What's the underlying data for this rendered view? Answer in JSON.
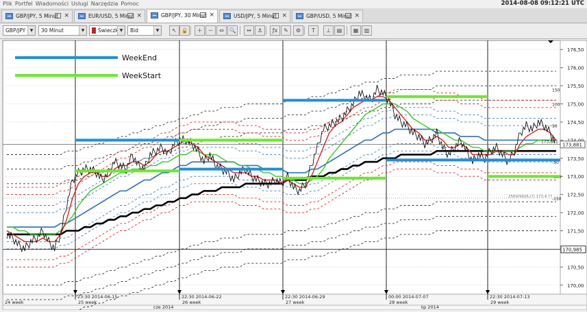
{
  "menu": [
    "Plik",
    "Portfel",
    "Wiadomości",
    "Usługi",
    "Narzędzia",
    "Pomoc"
  ],
  "clock": "2014-08-08 09:12:21 UTC",
  "tabs": [
    {
      "label": "GBP/JPY, 5 Minut",
      "active": false
    },
    {
      "label": "EUR/USD, 5 Minut",
      "active": false
    },
    {
      "label": "GBP/JPY, 30 Minut",
      "active": true
    },
    {
      "label": "USD/JPY, 5 Minut",
      "active": false
    },
    {
      "label": "GBP/USD, 5 Minut",
      "active": false
    }
  ],
  "toolbar": {
    "instrument": "GBP/JPY",
    "period": "30 Minut",
    "chart_type": "Świeczka",
    "side": "Bid"
  },
  "toolbar_buttons": [
    "cursor-tool",
    "lock-tool",
    "zoom-in-tool",
    "zoom-out-tool",
    "zoom-fit-tool",
    "magnifier-tool",
    "shift-tool",
    "anchor-tool",
    "fx-indicator-tool",
    "draw-tool",
    "settings-tool",
    "text-tool",
    "ruler-tool",
    "template-tool",
    "grid-tool",
    "table-tool"
  ],
  "chart_data": {
    "type": "line",
    "instrument": "GBP/JPY",
    "ylim": [
      169.75,
      176.75
    ],
    "y_ticks": [
      "176,50",
      "176,00",
      "175,50",
      "175,00",
      "174,50",
      "174,00",
      "173,50",
      "173,00",
      "172,50",
      "172,00",
      "171,50",
      "171,00",
      "170,50",
      "170,00"
    ],
    "y_tick_values": [
      176.5,
      176.0,
      175.5,
      175.0,
      174.5,
      174.0,
      173.5,
      173.0,
      172.5,
      172.0,
      171.5,
      171.0,
      170.5,
      170.0
    ],
    "current_price": "173,881",
    "current_price_value": 173.88,
    "crosshair_price": "170,985",
    "crosshair_price_value": 170.985,
    "info_label": "2569/9926,(?) 173.4 ??",
    "period_levels": [
      {
        "label": "150",
        "value": 175.4
      },
      {
        "label": "100",
        "value": 175.0
      },
      {
        "label": "50",
        "value": 174.4
      },
      {
        "label": "-50",
        "value": 173.4
      },
      {
        "label": "-100",
        "value": 173.0
      },
      {
        "label": "-150",
        "value": 172.4
      }
    ],
    "week_separators": [
      {
        "time": "23:30 2014-06-15",
        "week": "25 week"
      },
      {
        "time": "22:30 2014-06-22",
        "week": "26 week"
      },
      {
        "time": "22:30 2014-06-29",
        "week": "27 week"
      },
      {
        "time": "00:00 2014-07-07",
        "week": "28 week"
      },
      {
        "time": "22:30 2014-07-13",
        "week": "29 week"
      }
    ],
    "first_week": "24 week",
    "months": [
      {
        "label": "cze 2014",
        "position": 0.27
      },
      {
        "label": "lip 2014",
        "position": 0.75
      }
    ],
    "legend": [
      {
        "name": "WeekEnd",
        "color": "#1e90e0"
      },
      {
        "name": "WeekStart",
        "color": "#66ee22"
      }
    ],
    "week_end_levels": [
      174.0,
      175.1,
      173.2
    ],
    "week_start_levels": [
      173.15,
      174.0,
      172.95,
      175.2,
      173.0
    ],
    "price": [
      171.4,
      171.3,
      171.1,
      171.0,
      171.2,
      171.3,
      171.5,
      171.2,
      171.0,
      171.4,
      172.2,
      172.9,
      173.1,
      173.2,
      173.2,
      173.1,
      172.9,
      173.1,
      173.4,
      173.3,
      173.2,
      173.6,
      173.3,
      173.2,
      173.6,
      173.7,
      173.8,
      173.6,
      173.9,
      174.0,
      174.0,
      173.9,
      173.7,
      173.4,
      173.6,
      173.3,
      173.2,
      173.1,
      172.9,
      173.1,
      173.2,
      173.0,
      172.9,
      172.8,
      172.8,
      172.9,
      172.8,
      173.0,
      172.7,
      172.6,
      172.8,
      173.3,
      173.8,
      174.3,
      174.4,
      174.5,
      174.6,
      174.8,
      175.0,
      175.3,
      175.2,
      175.1,
      175.4,
      175.3,
      175.1,
      174.7,
      174.5,
      174.4,
      174.2,
      174.1,
      173.9,
      174.0,
      174.2,
      173.8,
      173.6,
      173.8,
      174.0,
      173.7,
      173.4,
      173.6,
      173.5,
      173.7,
      173.8,
      173.6,
      173.4,
      173.7,
      174.2,
      174.4,
      174.3,
      174.5,
      174.4,
      174.2,
      173.9
    ],
    "ema_red": [
      171.5,
      171.4,
      171.3,
      171.2,
      171.2,
      171.2,
      171.3,
      171.2,
      171.2,
      171.4,
      171.8,
      172.4,
      172.8,
      173.0,
      173.1,
      173.1,
      173.0,
      173.0,
      173.2,
      173.3,
      173.3,
      173.4,
      173.4,
      173.3,
      173.4,
      173.6,
      173.7,
      173.7,
      173.8,
      173.9,
      174.0,
      173.9,
      173.8,
      173.6,
      173.5,
      173.4,
      173.3,
      173.2,
      173.1,
      173.1,
      173.1,
      173.0,
      173.0,
      172.9,
      172.9,
      172.9,
      172.8,
      172.9,
      172.8,
      172.7,
      172.7,
      173.0,
      173.4,
      173.8,
      174.2,
      174.4,
      174.5,
      174.7,
      174.9,
      175.0,
      175.1,
      175.1,
      175.2,
      175.2,
      175.1,
      174.9,
      174.7,
      174.5,
      174.3,
      174.2,
      174.0,
      174.0,
      174.1,
      174.0,
      173.8,
      173.8,
      173.9,
      173.8,
      173.6,
      173.6,
      173.6,
      173.6,
      173.7,
      173.7,
      173.6,
      173.6,
      173.9,
      174.1,
      174.2,
      174.3,
      174.3,
      174.2,
      174.0
    ],
    "sma_green": [
      171.6,
      171.6,
      171.5,
      171.5,
      171.4,
      171.4,
      171.4,
      171.4,
      171.4,
      171.5,
      171.7,
      171.9,
      172.2,
      172.4,
      172.6,
      172.7,
      172.8,
      172.9,
      173.0,
      173.1,
      173.1,
      173.2,
      173.2,
      173.2,
      173.3,
      173.3,
      173.4,
      173.4,
      173.5,
      173.6,
      173.6,
      173.7,
      173.7,
      173.6,
      173.6,
      173.6,
      173.5,
      173.4,
      173.4,
      173.3,
      173.3,
      173.2,
      173.2,
      173.1,
      173.1,
      173.0,
      173.0,
      172.9,
      172.9,
      172.8,
      172.8,
      172.9,
      173.0,
      173.2,
      173.5,
      173.7,
      173.9,
      174.1,
      174.3,
      174.5,
      174.7,
      174.8,
      174.9,
      175.0,
      175.0,
      175.0,
      174.9,
      174.8,
      174.6,
      174.5,
      174.4,
      174.3,
      174.3,
      174.2,
      174.1,
      174.0,
      174.0,
      173.9,
      173.8,
      173.8,
      173.7,
      173.7,
      173.7,
      173.7,
      173.7,
      173.7,
      173.8,
      173.9,
      173.9,
      174.0,
      174.0,
      174.0,
      174.0
    ],
    "sma_blue": [
      171.6,
      171.6,
      171.6,
      171.6,
      171.6,
      171.6,
      171.6,
      171.6,
      171.6,
      171.7,
      171.7,
      171.8,
      171.9,
      172.0,
      172.1,
      172.2,
      172.3,
      172.4,
      172.5,
      172.6,
      172.6,
      172.7,
      172.8,
      172.9,
      172.9,
      173.0,
      173.1,
      173.1,
      173.2,
      173.3,
      173.3,
      173.4,
      173.4,
      173.4,
      173.4,
      173.4,
      173.4,
      173.4,
      173.4,
      173.3,
      173.3,
      173.3,
      173.3,
      173.2,
      173.2,
      173.2,
      173.2,
      173.1,
      173.1,
      173.1,
      173.1,
      173.2,
      173.2,
      173.3,
      173.4,
      173.5,
      173.6,
      173.7,
      173.8,
      173.9,
      174.0,
      174.0,
      174.1,
      174.2,
      174.2,
      174.3,
      174.3,
      174.3,
      174.3,
      174.3,
      174.3,
      174.3,
      174.2,
      174.2,
      174.2,
      174.2,
      174.1,
      174.1,
      174.1,
      174.1,
      174.0,
      174.0,
      174.0,
      174.0,
      174.0,
      174.0,
      174.0,
      174.0,
      174.0,
      174.0,
      174.0,
      174.0,
      174.0
    ],
    "sma_black": [
      171.4,
      171.4,
      171.4,
      171.4,
      171.4,
      171.4,
      171.4,
      171.4,
      171.4,
      171.4,
      171.5,
      171.5,
      171.5,
      171.6,
      171.6,
      171.7,
      171.7,
      171.8,
      171.8,
      171.9,
      171.9,
      172.0,
      172.0,
      172.1,
      172.1,
      172.2,
      172.2,
      172.3,
      172.3,
      172.4,
      172.4,
      172.5,
      172.5,
      172.6,
      172.6,
      172.6,
      172.7,
      172.7,
      172.7,
      172.7,
      172.8,
      172.8,
      172.8,
      172.8,
      172.8,
      172.8,
      172.8,
      172.9,
      172.9,
      172.9,
      172.9,
      173.0,
      173.0,
      173.0,
      173.1,
      173.1,
      173.2,
      173.2,
      173.3,
      173.3,
      173.4,
      173.4,
      173.4,
      173.5,
      173.5,
      173.5,
      173.6,
      173.6,
      173.6,
      173.6,
      173.6,
      173.6,
      173.7,
      173.7,
      173.7,
      173.7,
      173.7,
      173.7,
      173.7,
      173.7,
      173.7,
      173.7,
      173.7,
      173.7,
      173.7,
      173.7,
      173.7,
      173.7,
      173.7,
      173.7,
      173.7,
      173.7,
      173.7
    ]
  }
}
